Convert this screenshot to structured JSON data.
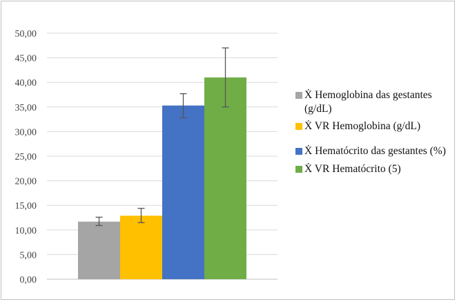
{
  "chart_data": {
    "type": "bar",
    "title": "",
    "xlabel": "",
    "ylabel": "",
    "ylim": [
      0,
      50
    ],
    "yticks": [
      "0,00",
      "5,00",
      "10,00",
      "15,00",
      "20,00",
      "25,00",
      "30,00",
      "35,00",
      "40,00",
      "45,00",
      "50,00"
    ],
    "grid": true,
    "legend_position": "right",
    "series": [
      {
        "name": "Ẋ Hemoglobina das gestantes (g/dL)",
        "value": 11.7,
        "err_low": 10.9,
        "err_high": 12.6,
        "color": "#a5a5a5"
      },
      {
        "name": "Ẋ VR Hemoglobina (g/dL)",
        "value": 12.9,
        "err_low": 11.5,
        "err_high": 14.4,
        "color": "#ffc000"
      },
      {
        "name": "Ẋ Hematócrito das gestantes (%)",
        "value": 35.3,
        "err_low": 32.8,
        "err_high": 37.7,
        "color": "#4472c4"
      },
      {
        "name": "Ẋ VR Hematócrito (5)",
        "value": 41.0,
        "err_low": 35.0,
        "err_high": 47.0,
        "color": "#70ad47"
      }
    ]
  }
}
